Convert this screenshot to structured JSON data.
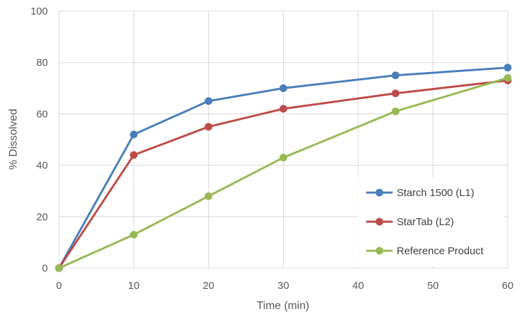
{
  "chart_data": {
    "type": "line",
    "title": "",
    "xlabel": "Time (min)",
    "ylabel": "% Dissolved",
    "x": [
      0,
      10,
      20,
      30,
      45,
      60
    ],
    "xlim": [
      0,
      60
    ],
    "ylim": [
      0,
      100
    ],
    "xticks": [
      "0",
      "10",
      "20",
      "30",
      "40",
      "50",
      "60"
    ],
    "yticks": [
      "0",
      "20",
      "40",
      "60",
      "80",
      "100"
    ],
    "grid": true,
    "legend_position": "bottom-right",
    "series": [
      {
        "name": "Starch 1500 (L1)",
        "color": "#4a7ebb",
        "values": [
          0,
          52,
          65,
          70,
          75,
          78
        ]
      },
      {
        "name": "StarTab (L2)",
        "color": "#be4b48",
        "values": [
          0,
          44,
          55,
          62,
          68,
          73
        ]
      },
      {
        "name": "Reference Product",
        "color": "#98b954",
        "values": [
          0,
          13,
          28,
          43,
          61,
          74
        ]
      }
    ]
  }
}
